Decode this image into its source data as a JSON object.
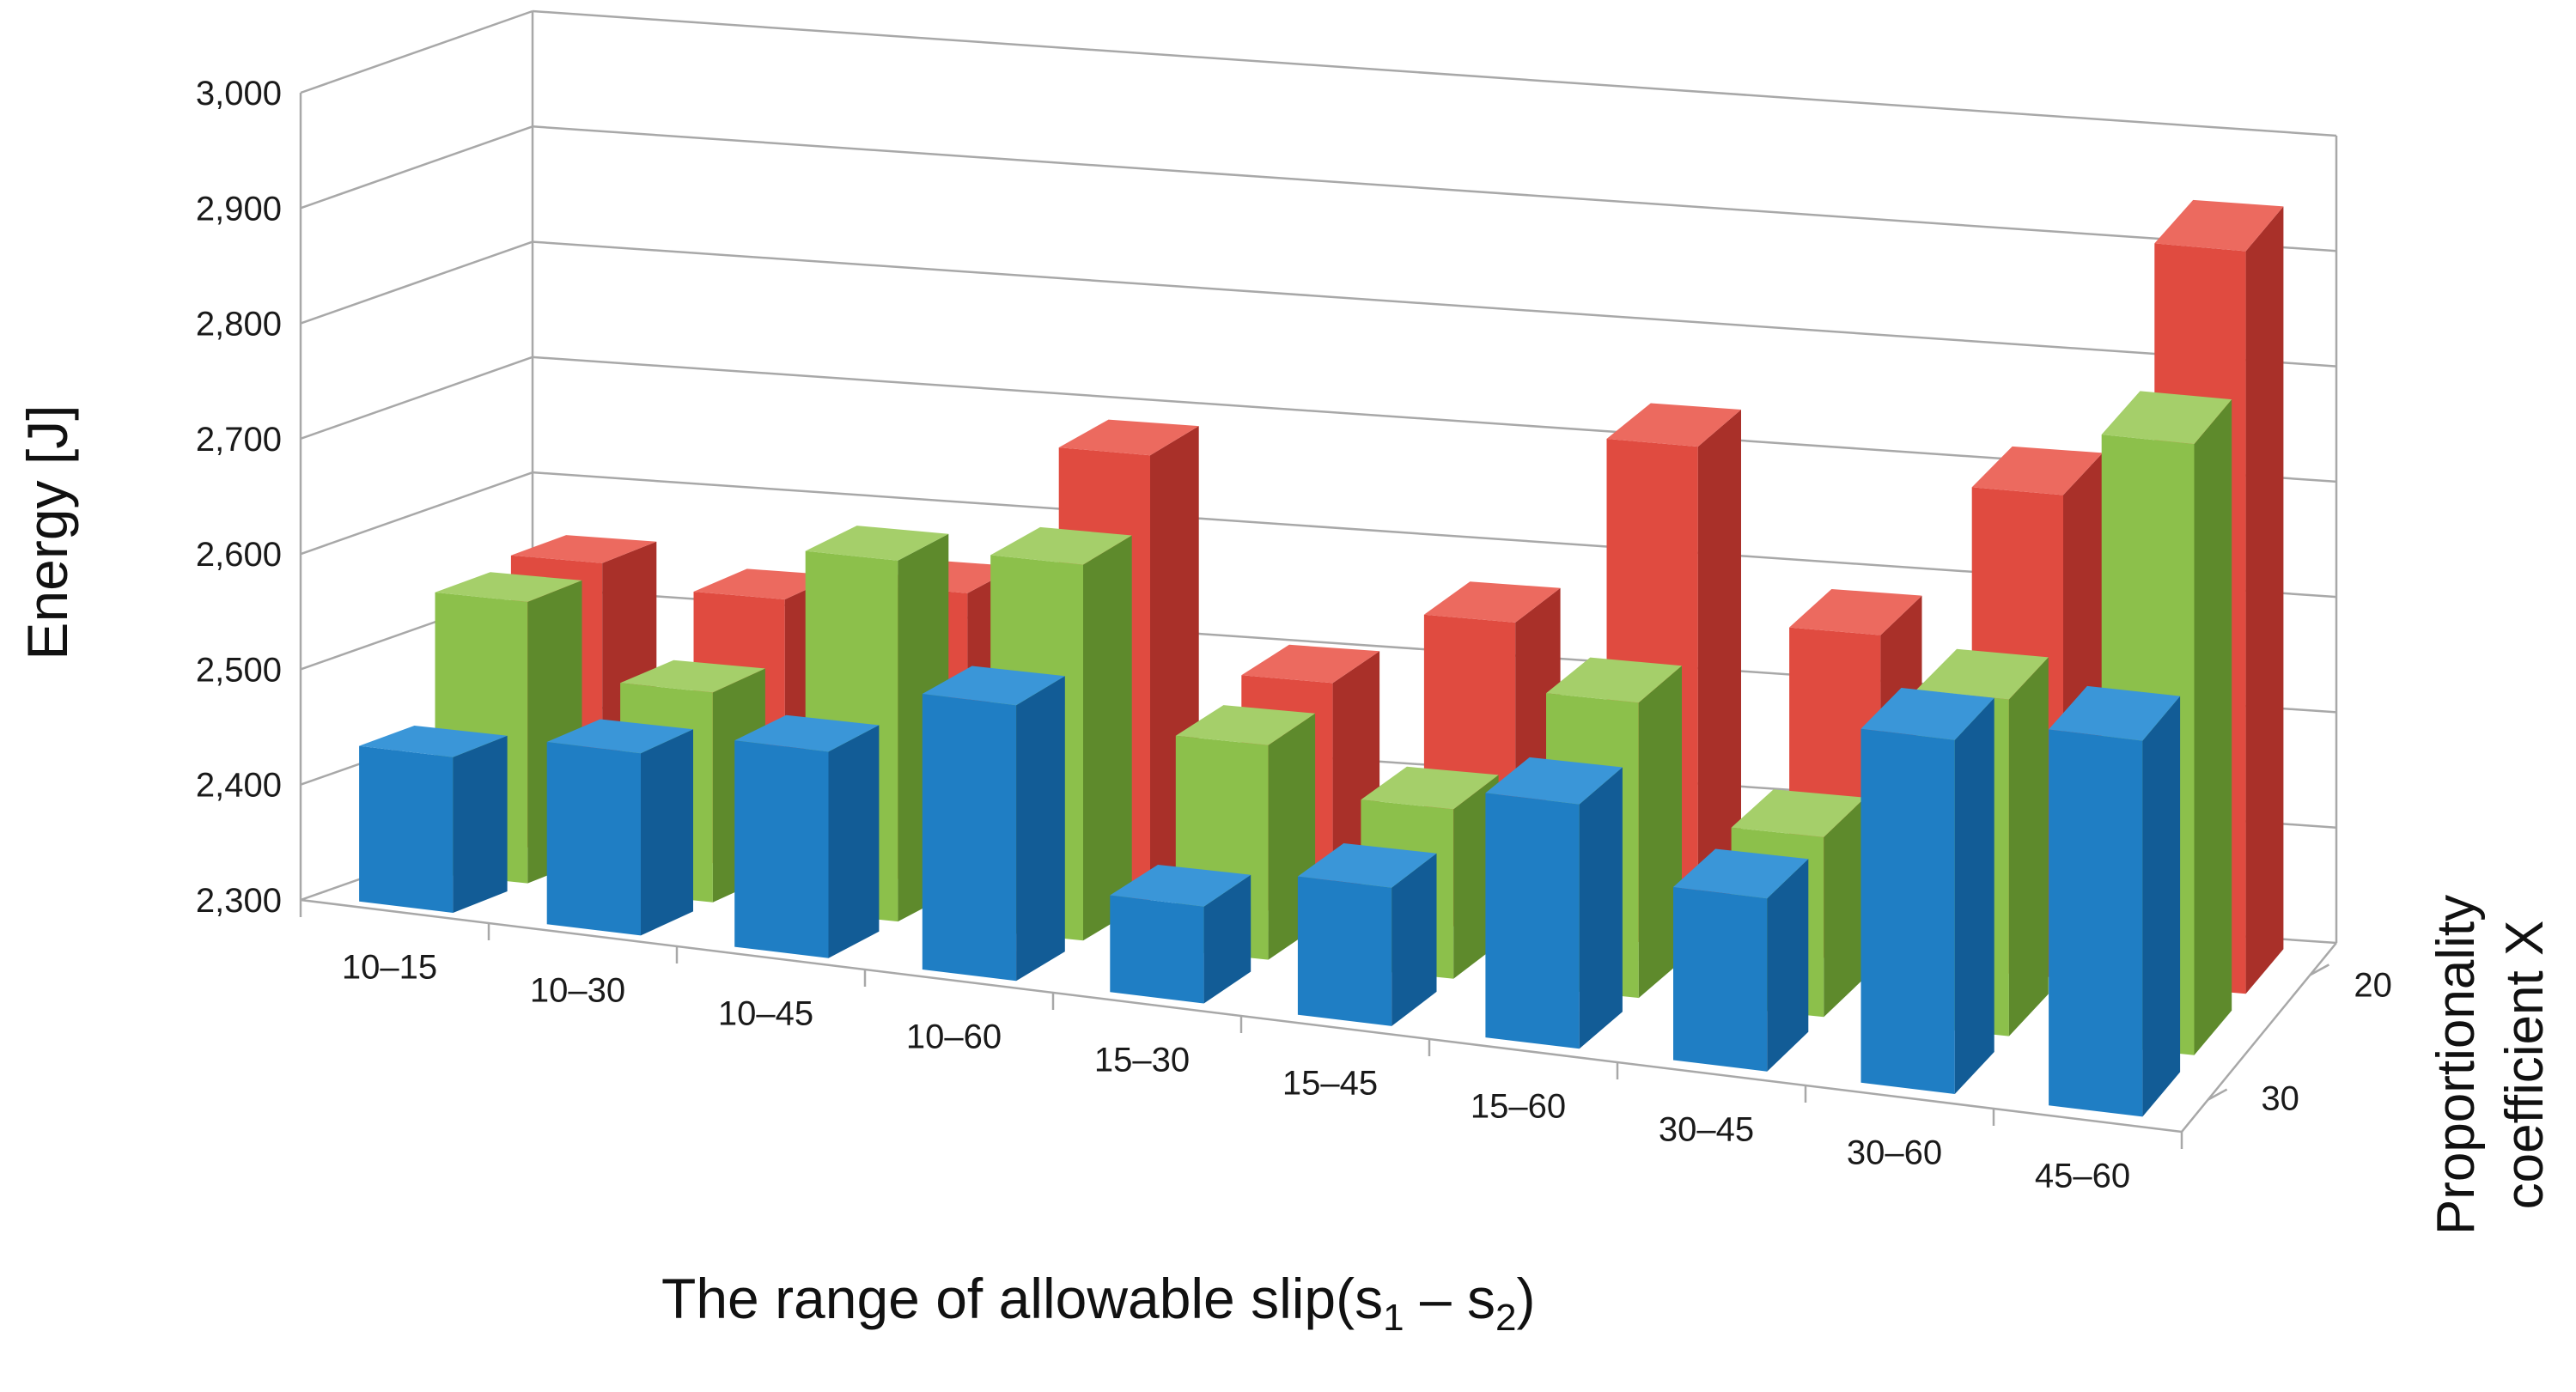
{
  "chart_data": {
    "type": "bar",
    "style": "3d-clustered",
    "title": "",
    "xlabel": "The range of allowable slip(s",
    "xlabel_sub1": "1",
    "xlabel_mid": " – s",
    "xlabel_sub2": "2",
    "xlabel_end": ")",
    "ylabel": "Energy  [J]",
    "zlabel_line1": "Proportionality",
    "zlabel_line2": "coefficient X",
    "ylim": [
      2300,
      3000
    ],
    "ytick_labels": [
      "2,300",
      "2,400",
      "2,500",
      "2,600",
      "2,700",
      "2,800",
      "2,900",
      "3,000"
    ],
    "yticks": [
      2300,
      2400,
      2500,
      2600,
      2700,
      2800,
      2900,
      3000
    ],
    "depth_labels": [
      "20",
      "30"
    ],
    "categories": [
      "10–15",
      "10–30",
      "10–45",
      "10–60",
      "15–30",
      "15–45",
      "15–60",
      "30–45",
      "30–60",
      "45–60"
    ],
    "series": [
      {
        "name": "20",
        "color": "#e04b40",
        "side": "#a93029",
        "top": "#ec6a5f",
        "values": [
          2552,
          2534,
          2553,
          2686,
          2502,
          2568,
          2734,
          2584,
          2719,
          2944
        ]
      },
      {
        "name": "",
        "color": "#8cc04b",
        "side": "#5e8a2c",
        "top": "#a5cf6a",
        "values": [
          2544,
          2482,
          2613,
          2626,
          2486,
          2447,
          2556,
          2456,
          2592,
          2830
        ]
      },
      {
        "name": "30",
        "color": "#1f7ec4",
        "side": "#125c96",
        "top": "#3a96d8",
        "values": [
          2435,
          2458,
          2479,
          2539,
          2384,
          2420,
          2512,
          2450,
          2607,
          2626
        ]
      }
    ]
  }
}
